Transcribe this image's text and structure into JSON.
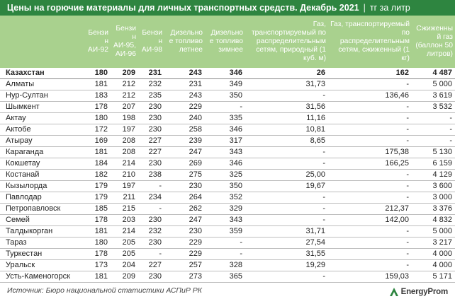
{
  "header": {
    "title": "Цены на горючие материалы для личных транспортных средств. Декабрь 2021",
    "separator": "|",
    "unit": "тг за литр"
  },
  "table": {
    "columns": [
      "",
      "Бензин АИ-92",
      "Бензин АИ-95, АИ-96",
      "Бензин АИ-98",
      "Дизельное топливо летнее",
      "Дизельное топливо зимнее",
      "Газ, транспортируемый по распределительным сетям, природный (1 куб. м)",
      "Газ, транспортируемый по распределительным сетям, сжиженный (1 кг)",
      "Сжиженный газ (баллон 50 литров)"
    ],
    "rows": [
      [
        "Казахстан",
        "180",
        "209",
        "231",
        "243",
        "346",
        "26",
        "162",
        "4 487"
      ],
      [
        "Алматы",
        "181",
        "212",
        "232",
        "231",
        "349",
        "31,73",
        "-",
        "5 000"
      ],
      [
        "Нур-Султан",
        "183",
        "212",
        "235",
        "243",
        "350",
        "-",
        "136,46",
        "3 619"
      ],
      [
        "Шымкент",
        "178",
        "207",
        "230",
        "229",
        "-",
        "31,56",
        "-",
        "3 532"
      ],
      [
        "Актау",
        "180",
        "198",
        "230",
        "240",
        "335",
        "11,16",
        "-",
        "-"
      ],
      [
        "Актобе",
        "172",
        "197",
        "230",
        "258",
        "346",
        "10,81",
        "-",
        "-"
      ],
      [
        "Атырау",
        "169",
        "208",
        "227",
        "239",
        "317",
        "8,65",
        "-",
        "-"
      ],
      [
        "Караганда",
        "181",
        "208",
        "227",
        "247",
        "343",
        "-",
        "175,38",
        "5 130"
      ],
      [
        "Кокшетау",
        "184",
        "214",
        "230",
        "269",
        "346",
        "-",
        "166,25",
        "6 159"
      ],
      [
        "Костанай",
        "182",
        "210",
        "238",
        "275",
        "325",
        "25,00",
        "-",
        "4 129"
      ],
      [
        "Кызылорда",
        "179",
        "197",
        "-",
        "230",
        "350",
        "19,67",
        "-",
        "3 600"
      ],
      [
        "Павлодар",
        "179",
        "211",
        "234",
        "264",
        "352",
        "-",
        "-",
        "3 000"
      ],
      [
        "Петропавловск",
        "185",
        "215",
        "-",
        "262",
        "329",
        "-",
        "212,37",
        "3 376"
      ],
      [
        "Семей",
        "178",
        "203",
        "230",
        "247",
        "343",
        "-",
        "142,00",
        "4 832"
      ],
      [
        "Талдыкорган",
        "181",
        "214",
        "232",
        "230",
        "359",
        "31,71",
        "-",
        "5 000"
      ],
      [
        "Тараз",
        "180",
        "205",
        "230",
        "229",
        "-",
        "27,54",
        "-",
        "3 217"
      ],
      [
        "Туркестан",
        "178",
        "205",
        "-",
        "229",
        "-",
        "31,55",
        "-",
        "4 000"
      ],
      [
        "Уральск",
        "173",
        "204",
        "227",
        "257",
        "328",
        "19,29",
        "-",
        "4 000"
      ],
      [
        "Усть-Каменогорск",
        "181",
        "209",
        "230",
        "273",
        "365",
        "-",
        "159,03",
        "5 171"
      ]
    ]
  },
  "footer": {
    "source": "Источник: Бюро национальной статистики АСПиР РК",
    "logo_text": "EnergyProm",
    "logo_icon": "energyprom-logo-icon",
    "logo_color": "#2e8540"
  },
  "colors": {
    "title_bar": "#2e8540",
    "header_row": "#a9d18e",
    "header_text": "#ffffff"
  }
}
